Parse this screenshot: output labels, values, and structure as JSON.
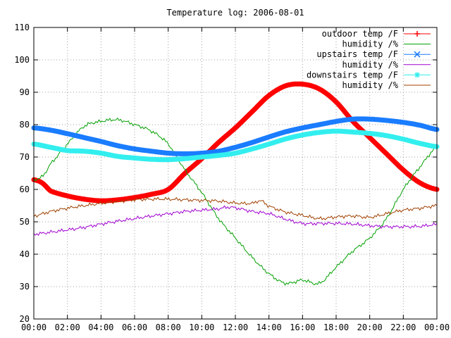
{
  "chart_data": {
    "type": "line",
    "title": "Temperature log: 2006-08-01",
    "xlabel": "",
    "ylabel": "",
    "ylim": [
      20,
      110
    ],
    "yticks": [
      20,
      30,
      40,
      50,
      60,
      70,
      80,
      90,
      100,
      110
    ],
    "xlim": [
      0,
      24
    ],
    "xtick_labels": [
      "00:00",
      "02:00",
      "04:00",
      "06:00",
      "08:00",
      "10:00",
      "12:00",
      "14:00",
      "16:00",
      "18:00",
      "20:00",
      "22:00",
      "00:00"
    ],
    "grid": true,
    "legend_position": "top-right",
    "series": [
      {
        "name": "outdoor temp /F",
        "color": "#ff0000",
        "marker": "plus",
        "x": [
          0,
          0.5,
          1,
          2,
          3,
          4,
          5,
          6,
          7,
          8,
          9,
          10,
          11,
          12,
          13,
          14,
          15,
          16,
          17,
          18,
          19,
          20,
          21,
          22,
          23,
          24
        ],
        "y": [
          63,
          62,
          59.5,
          58,
          57,
          56.5,
          56.8,
          57.5,
          58.5,
          60,
          65,
          69.5,
          74.5,
          79,
          84,
          89,
          92,
          92.5,
          91,
          87,
          81,
          76,
          71,
          66,
          62,
          60
        ]
      },
      {
        "name": "humidity /%",
        "color": "#00a000",
        "marker": "none",
        "x": [
          0,
          0.5,
          1,
          2,
          3,
          4,
          5,
          6,
          7,
          8,
          9,
          10,
          11,
          12,
          13,
          14,
          15,
          16,
          17,
          18,
          19,
          20,
          21,
          22,
          23,
          24
        ],
        "y": [
          63,
          64,
          68,
          74,
          79.5,
          81,
          81.5,
          80,
          78,
          74,
          66,
          59,
          51,
          45,
          39,
          34,
          31,
          32,
          31,
          36,
          41,
          45,
          51,
          60,
          67,
          73
        ]
      },
      {
        "name": "upstairs temp /F",
        "color": "#1a7cff",
        "marker": "cross",
        "x": [
          0,
          1,
          2,
          3,
          4,
          5,
          6,
          7,
          8,
          9,
          10,
          11,
          12,
          13,
          14,
          15,
          16,
          17,
          18,
          19,
          20,
          21,
          22,
          23,
          24
        ],
        "y": [
          79,
          78.3,
          77.2,
          76,
          74.8,
          73.5,
          72.5,
          71.8,
          71.2,
          71.0,
          71.2,
          71.8,
          73,
          74.5,
          76.2,
          77.8,
          79,
          80,
          81,
          81.7,
          81.7,
          81.3,
          80.7,
          79.8,
          78.5
        ]
      },
      {
        "name": "humidity /%",
        "color": "#a000d0",
        "marker": "none",
        "x": [
          0,
          1,
          2,
          3,
          4,
          5,
          6,
          7,
          8,
          9,
          10,
          11,
          11.5,
          12,
          13,
          14,
          15,
          16,
          17,
          18,
          19,
          20,
          21,
          22,
          23,
          24
        ],
        "y": [
          46.2,
          46.8,
          47.5,
          48.3,
          49.3,
          50.2,
          51.0,
          51.8,
          52.5,
          53.2,
          53.6,
          54.0,
          54.5,
          54.3,
          53.2,
          52.5,
          50.8,
          49.5,
          49.5,
          49.5,
          49.3,
          48.8,
          48.5,
          48.5,
          48.6,
          49.2
        ]
      },
      {
        "name": "downstairs temp /F",
        "color": "#33eeee",
        "marker": "star",
        "x": [
          0,
          1,
          2,
          3,
          4,
          5,
          6,
          7,
          8,
          9,
          10,
          11,
          12,
          13,
          14,
          15,
          16,
          17,
          18,
          19,
          20,
          21,
          22,
          23,
          24
        ],
        "y": [
          74,
          73,
          72,
          71.8,
          71.2,
          70.2,
          69.7,
          69.3,
          69.2,
          69.5,
          70.0,
          70.5,
          71.2,
          72.5,
          74.0,
          75.6,
          76.8,
          77.6,
          78.0,
          77.7,
          77.3,
          76.6,
          75.5,
          74.2,
          73.2
        ]
      },
      {
        "name": "humidity /%",
        "color": "#a04000",
        "marker": "none",
        "x": [
          0,
          1,
          2,
          3,
          4,
          5,
          6,
          7,
          8,
          9,
          10,
          11,
          12,
          13,
          13.5,
          14,
          15,
          16,
          17,
          18,
          19,
          20,
          21,
          22,
          23,
          24
        ],
        "y": [
          51.8,
          53.2,
          54.2,
          55.0,
          55.7,
          56.3,
          56.8,
          57.0,
          57.0,
          56.8,
          56.6,
          56.4,
          55.8,
          55.7,
          56.5,
          54.8,
          53.0,
          52.0,
          51.0,
          51.5,
          51.8,
          51.4,
          52.5,
          53.6,
          54.2,
          55.0
        ]
      }
    ]
  }
}
